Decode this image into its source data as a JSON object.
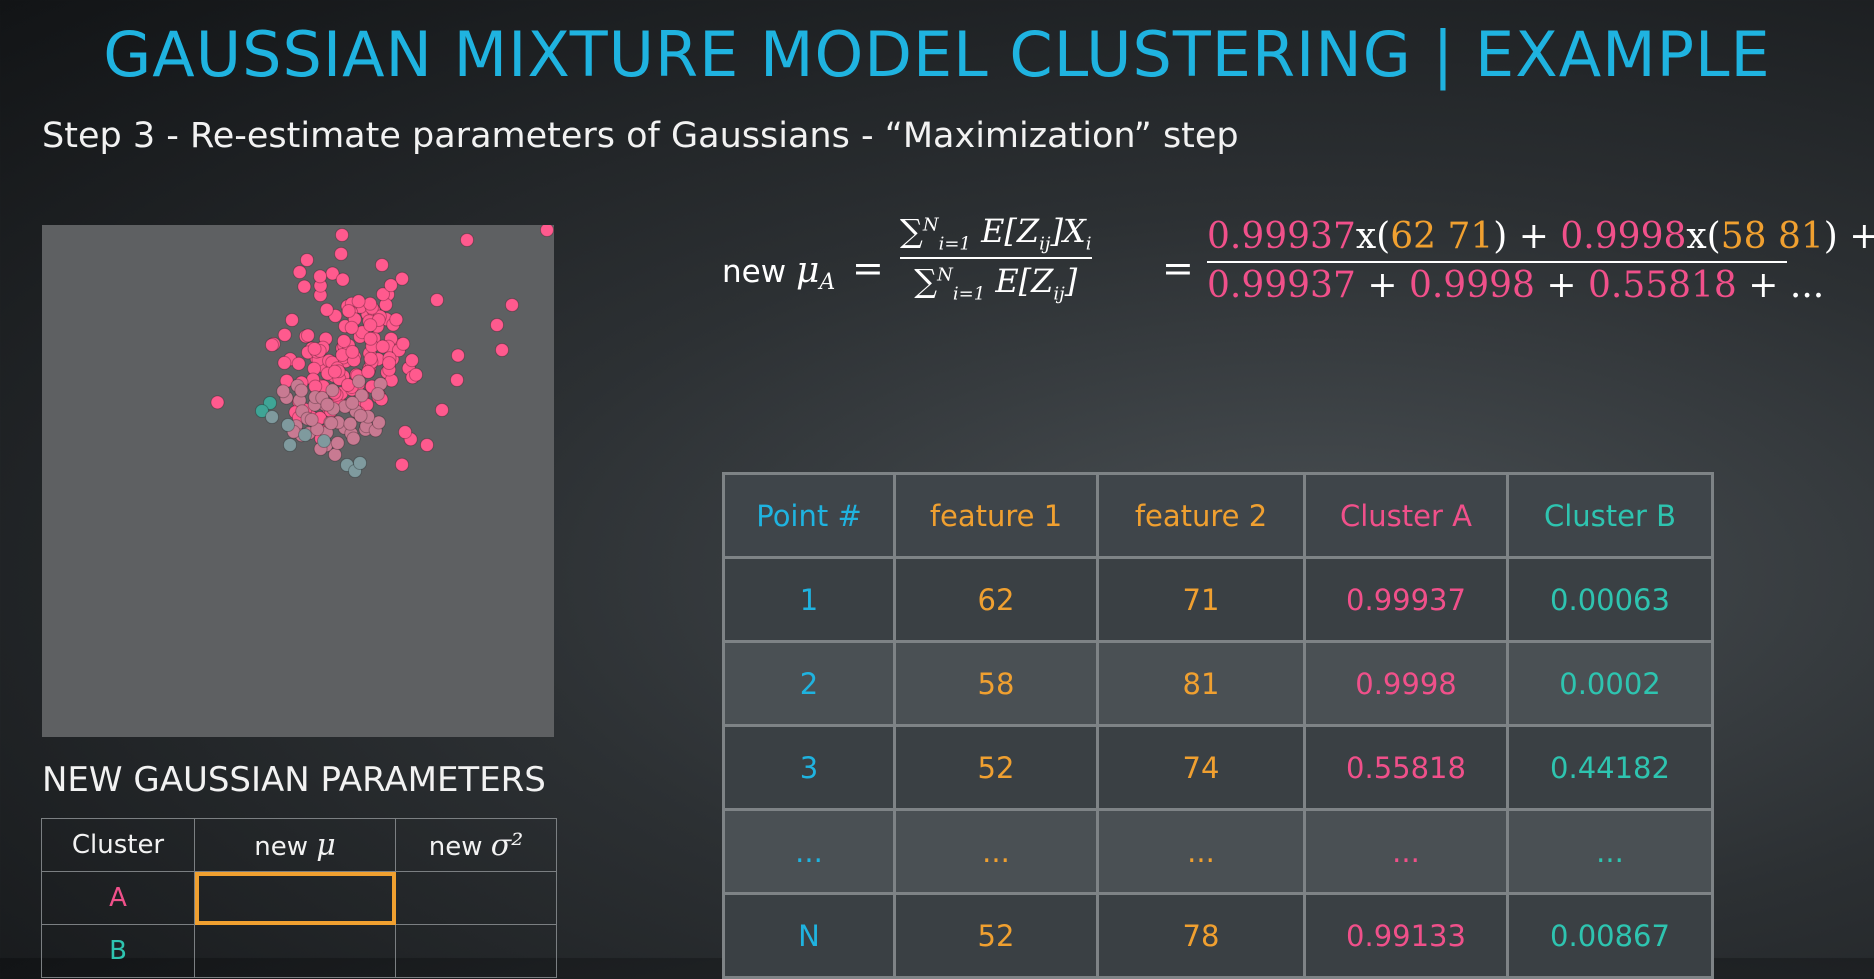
{
  "title": "GAUSSIAN MIXTURE MODEL CLUSTERING | EXAMPLE",
  "subtitle": "Step 3 - Re-estimate parameters of Gaussians - “Maximization” step",
  "formula": {
    "lhs_prefix": "new",
    "lhs_symbol": "μ",
    "lhs_sub": "A",
    "numerator": "∑_{i=1}^N E[Z_ij] X_i",
    "denominator": "∑_{i=1}^N E[Z_ij]",
    "rhs_numerator": [
      {
        "text": "0.99937",
        "color": "#f0508a"
      },
      {
        "text": "x(",
        "color": "#ffffff"
      },
      {
        "text": "62 71",
        "color": "#f0a030"
      },
      {
        "text": ") + ",
        "color": "#ffffff"
      },
      {
        "text": "0.9998",
        "color": "#f0508a"
      },
      {
        "text": "x(",
        "color": "#ffffff"
      },
      {
        "text": "58 81",
        "color": "#f0a030"
      },
      {
        "text": ") + ...",
        "color": "#ffffff"
      }
    ],
    "rhs_denominator": [
      {
        "text": "0.99937",
        "color": "#f0508a"
      },
      {
        "text": " + ",
        "color": "#ffffff"
      },
      {
        "text": "0.9998",
        "color": "#f0508a"
      },
      {
        "text": " + ",
        "color": "#ffffff"
      },
      {
        "text": "0.55818",
        "color": "#f0508a"
      },
      {
        "text": " + ...",
        "color": "#ffffff"
      }
    ]
  },
  "table": {
    "headers": [
      "Point #",
      "feature 1",
      "feature 2",
      "Cluster A",
      "Cluster B"
    ],
    "rows": [
      [
        "1",
        "62",
        "71",
        "0.99937",
        "0.00063"
      ],
      [
        "2",
        "58",
        "81",
        "0.9998",
        "0.0002"
      ],
      [
        "3",
        "52",
        "74",
        "0.55818",
        "0.44182"
      ],
      [
        "...",
        "...",
        "...",
        "...",
        "..."
      ],
      [
        "N",
        "52",
        "78",
        "0.99133",
        "0.00867"
      ]
    ]
  },
  "params": {
    "title": "NEW GAUSSIAN PARAMETERS",
    "headers": {
      "cluster": "Cluster",
      "mu_prefix": "new",
      "mu_symbol": "μ",
      "sigma_prefix": "new",
      "sigma_symbol": "σ²"
    },
    "rows": [
      {
        "cluster": "A",
        "color": "#f0508a"
      },
      {
        "cluster": "B",
        "color": "#2ec4b0"
      }
    ]
  },
  "colors": {
    "title": "#1fb3e0",
    "cluster_a": "#f0508a",
    "cluster_b": "#2ec4b0",
    "feature": "#f0a030",
    "point": "#1fb3e0",
    "highlight": "#f0a030"
  }
}
